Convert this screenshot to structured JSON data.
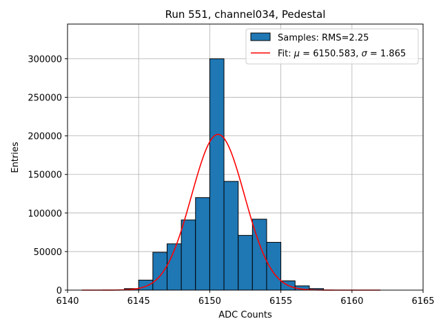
{
  "chart_data": {
    "type": "bar",
    "title": "Run 551, channel034, Pedestal",
    "xlabel": "ADC Counts",
    "ylabel": "Entries",
    "xlim": [
      6140,
      6165
    ],
    "ylim": [
      0,
      345000
    ],
    "xticks": [
      6140,
      6145,
      6150,
      6155,
      6160,
      6165
    ],
    "yticks": [
      0,
      50000,
      100000,
      150000,
      200000,
      250000,
      300000
    ],
    "xtick_labels": [
      "6140",
      "6145",
      "6150",
      "6155",
      "6160",
      "6165"
    ],
    "ytick_labels": [
      "0",
      "50000",
      "100000",
      "150000",
      "200000",
      "250000",
      "300000"
    ],
    "grid": true,
    "legend_position": "top-right",
    "histogram": {
      "name": "Samples: RMS=2.25",
      "color": "#1f77b4",
      "edge_color": "#000000",
      "bins": [
        {
          "low": 6144,
          "high": 6145,
          "count": 2000
        },
        {
          "low": 6145,
          "high": 6146,
          "count": 13000
        },
        {
          "low": 6146,
          "high": 6147,
          "count": 49000
        },
        {
          "low": 6147,
          "high": 6148,
          "count": 60000
        },
        {
          "low": 6148,
          "high": 6149,
          "count": 91000
        },
        {
          "low": 6149,
          "high": 6150,
          "count": 120000
        },
        {
          "low": 6150,
          "high": 6151,
          "count": 300000
        },
        {
          "low": 6151,
          "high": 6152,
          "count": 141000
        },
        {
          "low": 6152,
          "high": 6153,
          "count": 71000
        },
        {
          "low": 6153,
          "high": 6154,
          "count": 92000
        },
        {
          "low": 6154,
          "high": 6155,
          "count": 62000
        },
        {
          "low": 6155,
          "high": 6156,
          "count": 12000
        },
        {
          "low": 6156,
          "high": 6157,
          "count": 5500
        },
        {
          "low": 6157,
          "high": 6158,
          "count": 2000
        }
      ]
    },
    "fit": {
      "prefix": "Fit: ",
      "mu_symbol": "μ",
      "mu_value": " = 6150.583, ",
      "sigma_symbol": "σ",
      "sigma_value": " = 1.865",
      "color": "#ff0000",
      "mu": 6150.583,
      "sigma": 1.865,
      "amplitude": 202000,
      "x_range": [
        6141,
        6162
      ]
    }
  }
}
